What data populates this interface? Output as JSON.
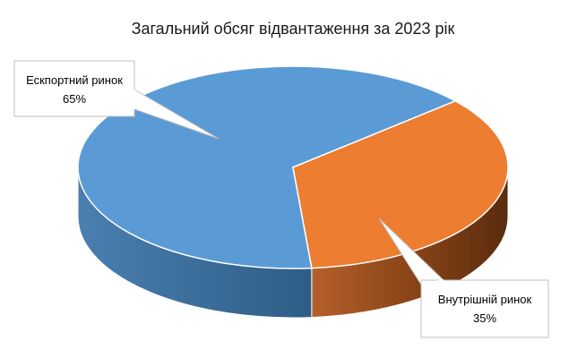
{
  "chart_data": {
    "type": "pie",
    "title": "Загальний обсяг відвантаження за 2023 рік",
    "categories": [
      "Ескпортний ринок",
      "Внутрішній ринок"
    ],
    "values": [
      65,
      35
    ],
    "value_labels": [
      "65%",
      "35%"
    ],
    "colors": [
      "#5b9bd5",
      "#ed7d31"
    ],
    "three_d": true,
    "legend": "none"
  }
}
